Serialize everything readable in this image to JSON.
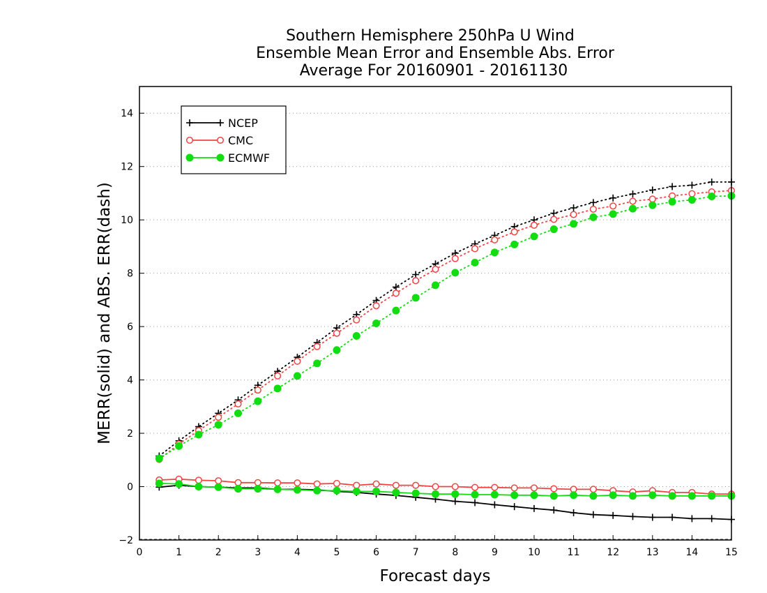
{
  "chart_data": {
    "type": "line",
    "title": [
      "Southern Hemisphere 250hPa U Wind",
      "Ensemble Mean Error and Ensemble Abs. Error",
      "Average For 20160901 - 20161130"
    ],
    "xlabel": "Forecast days",
    "ylabel": "MERR(solid) and ABS. ERR(dash)",
    "xlim": [
      0,
      15
    ],
    "ylim": [
      -2,
      15
    ],
    "xticks": [
      0,
      1,
      2,
      3,
      4,
      5,
      6,
      7,
      8,
      9,
      10,
      11,
      12,
      13,
      14,
      15
    ],
    "yticks": [
      -2,
      0,
      2,
      4,
      6,
      8,
      10,
      12,
      14
    ],
    "grid": "horizontal dotted",
    "legend_position": "top-left",
    "x": [
      0.5,
      1,
      1.5,
      2,
      2.5,
      3,
      3.5,
      4,
      4.5,
      5,
      5.5,
      6,
      6.5,
      7,
      7.5,
      8,
      8.5,
      9,
      9.5,
      10,
      10.5,
      11,
      11.5,
      12,
      12.5,
      13,
      13.5,
      14,
      14.5,
      15
    ],
    "series": [
      {
        "name": "NCEP",
        "color": "#000000",
        "marker": "plus",
        "abs_err": [
          1.15,
          1.72,
          2.25,
          2.75,
          3.25,
          3.8,
          4.32,
          4.85,
          5.4,
          5.95,
          6.45,
          6.98,
          7.48,
          7.95,
          8.35,
          8.75,
          9.1,
          9.42,
          9.75,
          10.0,
          10.25,
          10.45,
          10.65,
          10.82,
          10.97,
          11.12,
          11.25,
          11.3,
          11.42,
          11.42
        ],
        "mean_err": [
          -0.02,
          0.05,
          0.0,
          -0.02,
          -0.05,
          -0.05,
          -0.1,
          -0.1,
          -0.12,
          -0.18,
          -0.22,
          -0.28,
          -0.33,
          -0.4,
          -0.47,
          -0.55,
          -0.6,
          -0.68,
          -0.75,
          -0.82,
          -0.88,
          -0.98,
          -1.05,
          -1.08,
          -1.12,
          -1.15,
          -1.15,
          -1.2,
          -1.2,
          -1.23
        ]
      },
      {
        "name": "CMC",
        "color": "#ee4444",
        "marker": "open-circle",
        "abs_err": [
          1.02,
          1.6,
          2.1,
          2.6,
          3.1,
          3.62,
          4.15,
          4.7,
          5.25,
          5.75,
          6.25,
          6.78,
          7.25,
          7.72,
          8.15,
          8.55,
          8.92,
          9.25,
          9.55,
          9.8,
          10.02,
          10.2,
          10.4,
          10.52,
          10.7,
          10.78,
          10.9,
          10.98,
          11.05,
          11.1
        ],
        "mean_err": [
          0.25,
          0.28,
          0.24,
          0.22,
          0.15,
          0.15,
          0.14,
          0.14,
          0.1,
          0.12,
          0.05,
          0.1,
          0.05,
          0.05,
          0.0,
          0.0,
          -0.03,
          -0.03,
          -0.05,
          -0.05,
          -0.08,
          -0.1,
          -0.1,
          -0.15,
          -0.2,
          -0.15,
          -0.22,
          -0.22,
          -0.28,
          -0.28
        ]
      },
      {
        "name": "ECMWF",
        "color": "#11dd11",
        "marker": "filled-circle",
        "abs_err": [
          1.05,
          1.52,
          1.95,
          2.32,
          2.75,
          3.2,
          3.68,
          4.15,
          4.62,
          5.12,
          5.65,
          6.12,
          6.6,
          7.08,
          7.55,
          8.02,
          8.4,
          8.78,
          9.08,
          9.38,
          9.65,
          9.85,
          10.1,
          10.22,
          10.42,
          10.55,
          10.68,
          10.75,
          10.88,
          10.9
        ],
        "mean_err": [
          0.12,
          0.1,
          0.0,
          -0.02,
          -0.08,
          -0.08,
          -0.1,
          -0.12,
          -0.15,
          -0.15,
          -0.18,
          -0.18,
          -0.22,
          -0.25,
          -0.28,
          -0.28,
          -0.3,
          -0.3,
          -0.32,
          -0.32,
          -0.35,
          -0.32,
          -0.35,
          -0.32,
          -0.35,
          -0.32,
          -0.35,
          -0.35,
          -0.35,
          -0.35
        ]
      }
    ]
  }
}
